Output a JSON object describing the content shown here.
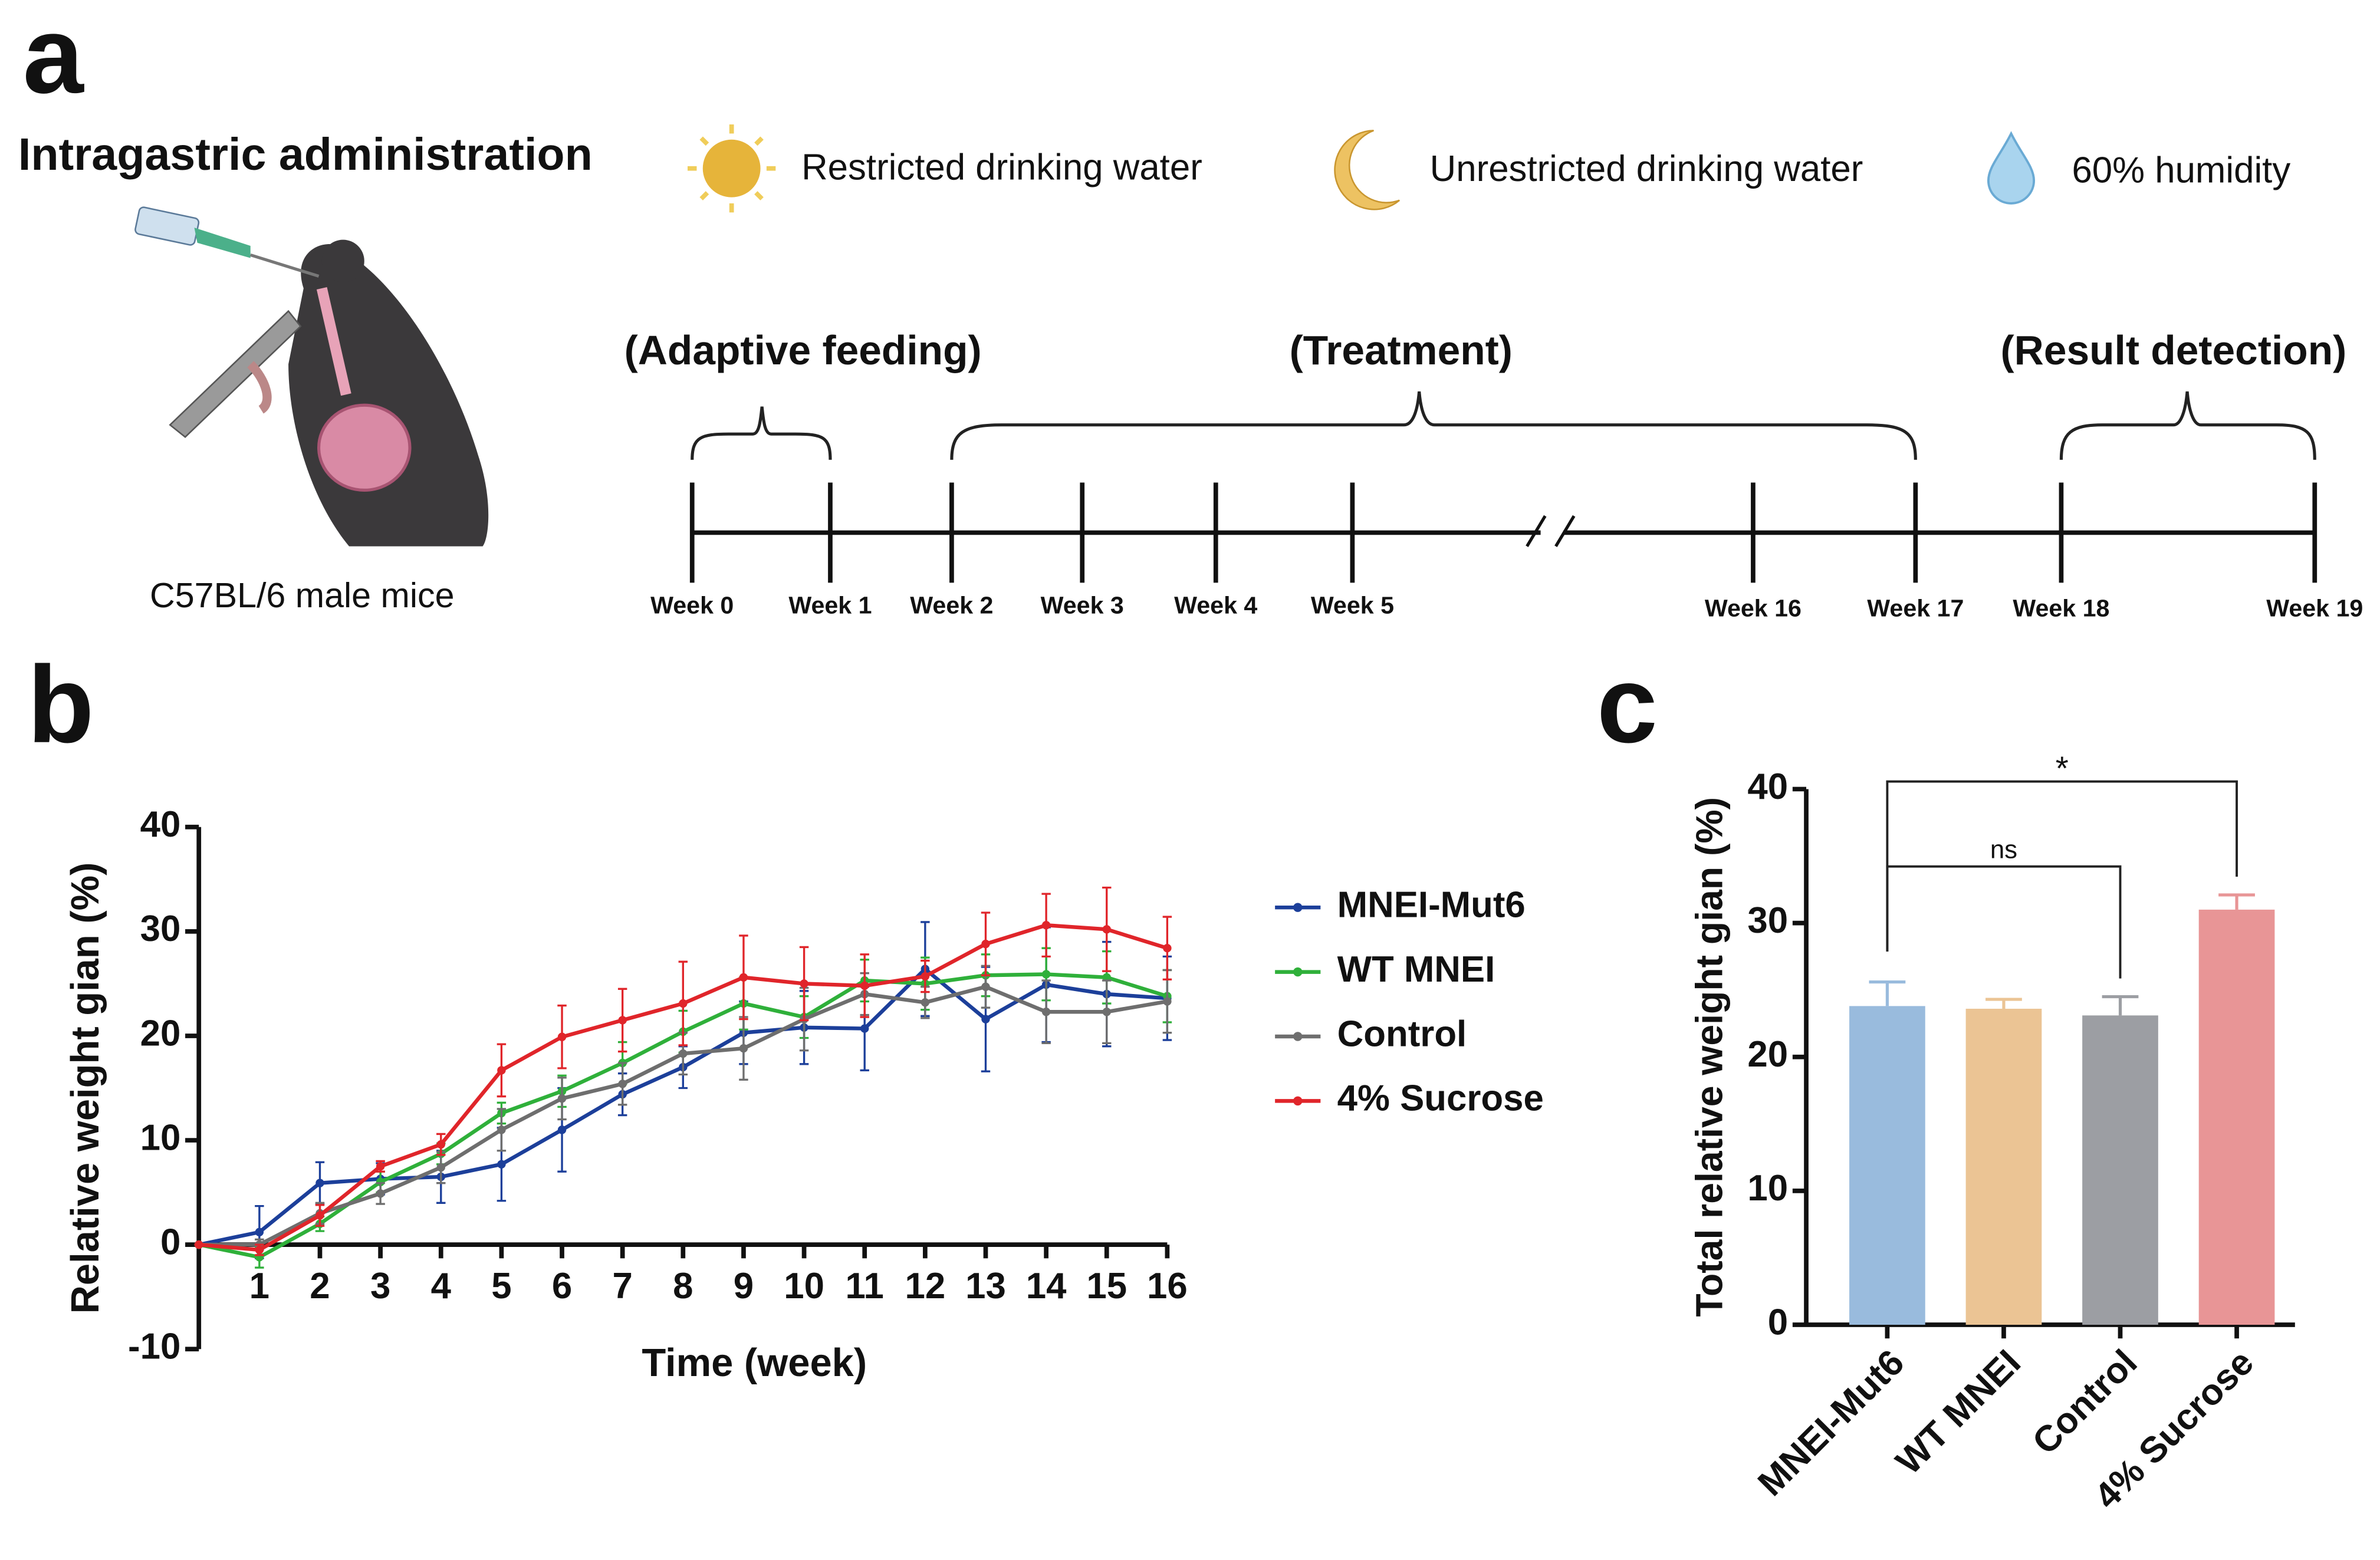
{
  "panel_labels": [
    "a",
    "b",
    "c"
  ],
  "header": {
    "title": "Intragastric administration",
    "conditions": [
      "Restricted drinking water",
      "Unrestricted drinking water",
      "60% humidity"
    ]
  },
  "mouse_label": "C57BL/6 male mice",
  "phases": [
    "(Adaptive feeding)",
    "(Treatment)",
    "(Result detection)"
  ],
  "timeline": [
    "Week 0",
    "Week 1",
    "Week 2",
    "Week 3",
    "Week 4",
    "Week 5",
    "Week 16",
    "Week 17",
    "Week 18",
    "Week 19"
  ],
  "chart_data": [
    {
      "type": "line",
      "x_label": "Time (week)",
      "y_label": "Relative weight gian (%)",
      "x": [
        0,
        1,
        2,
        3,
        4,
        5,
        6,
        7,
        8,
        9,
        10,
        11,
        12,
        13,
        14,
        15,
        16
      ],
      "xlim": [
        0,
        16
      ],
      "xticks": [
        1,
        2,
        3,
        4,
        5,
        6,
        7,
        8,
        9,
        10,
        11,
        12,
        13,
        14,
        15,
        16
      ],
      "ylim": [
        -10,
        40
      ],
      "yticks": [
        -10,
        0,
        10,
        20,
        30,
        40
      ],
      "series": [
        {
          "name": "MNEI-Mut6",
          "color": "#1c3f9a",
          "values": [
            0,
            1.2,
            5.9,
            6.3,
            6.5,
            7.7,
            11,
            14.4,
            17,
            20.3,
            20.8,
            20.7,
            26.4,
            21.6,
            24.9,
            24,
            23.6
          ],
          "errors": [
            0,
            2.5,
            2,
            1.5,
            2.5,
            3.5,
            4,
            2,
            2,
            3,
            3.5,
            4,
            4.5,
            5,
            5.5,
            5,
            4
          ]
        },
        {
          "name": "WT MNEI",
          "color": "#2fb03a",
          "values": [
            0,
            -1.2,
            2,
            6,
            8.7,
            12.6,
            14.7,
            17.4,
            20.4,
            23.1,
            21.8,
            25.3,
            25,
            25.8,
            25.9,
            25.6,
            23.8
          ],
          "errors": [
            0,
            1,
            0.7,
            1,
            1,
            1,
            1.5,
            2,
            2,
            2.5,
            2,
            2,
            2.5,
            2,
            2.5,
            2.5,
            2.5
          ]
        },
        {
          "name": "Control",
          "color": "#6e6e6e",
          "values": [
            0,
            0,
            3,
            4.9,
            7.4,
            11,
            14,
            15.4,
            18.3,
            18.8,
            21.6,
            24,
            23.2,
            24.7,
            22.3,
            22.3,
            23.3
          ],
          "errors": [
            0,
            0.5,
            1,
            1,
            1.5,
            2,
            2,
            2,
            2,
            3,
            3,
            2,
            1.5,
            2,
            3,
            3,
            3
          ]
        },
        {
          "name": "4% Sucrose",
          "color": "#e0252a",
          "values": [
            0,
            -0.5,
            2.8,
            7.5,
            9.6,
            16.7,
            19.9,
            21.5,
            23.1,
            25.6,
            25,
            24.8,
            25.7,
            28.8,
            30.6,
            30.2,
            28.4
          ],
          "errors": [
            0,
            0.5,
            1,
            0.5,
            1,
            2.5,
            3,
            3,
            4,
            4,
            3.5,
            3,
            1.5,
            3,
            3,
            4,
            3
          ]
        }
      ]
    },
    {
      "type": "bar",
      "y_label": "Total relative weight gian (%)",
      "categories": [
        "MNEI-Mut6",
        "WT MNEI",
        "Control",
        "4% Sucrose"
      ],
      "values": [
        23.8,
        23.6,
        23.1,
        31.0
      ],
      "errors": [
        1.8,
        0.7,
        1.4,
        1.1
      ],
      "colors": [
        "#99bbdd",
        "#ebc494",
        "#9c9ea3",
        "#e89596"
      ],
      "ylim": [
        0,
        40
      ],
      "yticks": [
        0,
        10,
        20,
        30,
        40
      ],
      "comparisons": [
        {
          "from": 0,
          "to": 2,
          "label": "ns"
        },
        {
          "from": 0,
          "to": 3,
          "label": "*"
        }
      ]
    }
  ]
}
